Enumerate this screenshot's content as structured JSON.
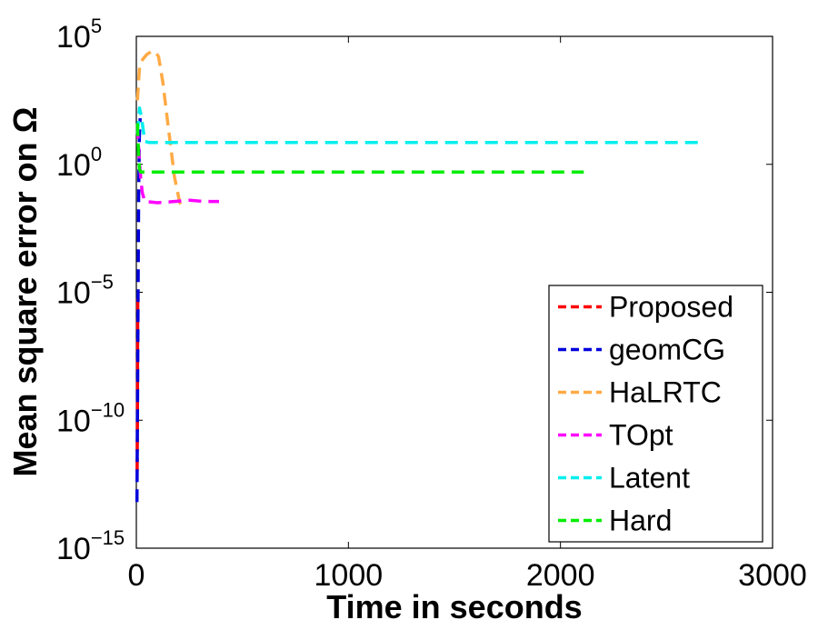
{
  "chart_data": {
    "type": "line",
    "xlabel": "Time in seconds",
    "ylabel": "Mean square error on Ω",
    "xlim": [
      0,
      3000
    ],
    "ylim_exponent": [
      -15,
      5
    ],
    "yscale": "log",
    "grid": false,
    "legend_position": "bottom-right",
    "xticks": [
      {
        "value": 0,
        "label": "0"
      },
      {
        "value": 1000,
        "label": "1000"
      },
      {
        "value": 2000,
        "label": "2000"
      },
      {
        "value": 3000,
        "label": "3000"
      }
    ],
    "yticks": [
      {
        "exp": 5,
        "base": "10",
        "sup": "5"
      },
      {
        "exp": 0,
        "base": "10",
        "sup": "0"
      },
      {
        "exp": -5,
        "base": "10",
        "sup": "−5"
      },
      {
        "exp": -10,
        "base": "10",
        "sup": "−10"
      },
      {
        "exp": -15,
        "base": "10",
        "sup": "−15"
      }
    ],
    "series": [
      {
        "name": "Proposed",
        "color": "#ff0000",
        "style": "dashed",
        "points": [
          [
            4,
            -12
          ],
          [
            5,
            -10
          ],
          [
            6,
            -7
          ],
          [
            7,
            -5
          ]
        ]
      },
      {
        "name": "geomCG",
        "color": "#0000dd",
        "style": "dashed",
        "points": [
          [
            3,
            -13.2
          ],
          [
            6,
            -9
          ],
          [
            9,
            -4
          ],
          [
            11,
            -1
          ],
          [
            14,
            1
          ],
          [
            18,
            1.8
          ]
        ]
      },
      {
        "name": "HaLRTC",
        "color": "#ffaa44",
        "style": "dashed",
        "points": [
          [
            5,
            2.5
          ],
          [
            15,
            3.8
          ],
          [
            30,
            4.1
          ],
          [
            50,
            4.3
          ],
          [
            70,
            4.4
          ],
          [
            90,
            4.4
          ],
          [
            105,
            4.2
          ],
          [
            125,
            3.2
          ],
          [
            150,
            1.5
          ],
          [
            180,
            -0.5
          ],
          [
            205,
            -1.5
          ],
          [
            222,
            -1.7
          ]
        ]
      },
      {
        "name": "TOpt",
        "color": "#ff00ff",
        "style": "dashed",
        "points": [
          [
            5,
            1.5
          ],
          [
            12,
            0.5
          ],
          [
            20,
            -0.5
          ],
          [
            28,
            -1.1
          ],
          [
            40,
            -1.45
          ],
          [
            100,
            -1.5
          ],
          [
            180,
            -1.45
          ],
          [
            250,
            -1.4
          ],
          [
            320,
            -1.45
          ],
          [
            390,
            -1.45
          ]
        ]
      },
      {
        "name": "Latent",
        "color": "#00eeee",
        "style": "dashed",
        "points": [
          [
            5,
            1.2
          ],
          [
            15,
            2.2
          ],
          [
            25,
            1.8
          ],
          [
            40,
            0.9
          ],
          [
            60,
            0.85
          ],
          [
            300,
            0.85
          ],
          [
            1000,
            0.85
          ],
          [
            2000,
            0.85
          ],
          [
            2660,
            0.85
          ]
        ]
      },
      {
        "name": "Hard",
        "color": "#00ee00",
        "style": "dashed",
        "points": [
          [
            5,
            1.6
          ],
          [
            10,
            0.5
          ],
          [
            15,
            -0.2
          ],
          [
            20,
            -0.3
          ],
          [
            100,
            -0.3
          ],
          [
            1000,
            -0.3
          ],
          [
            2110,
            -0.3
          ]
        ]
      }
    ]
  }
}
